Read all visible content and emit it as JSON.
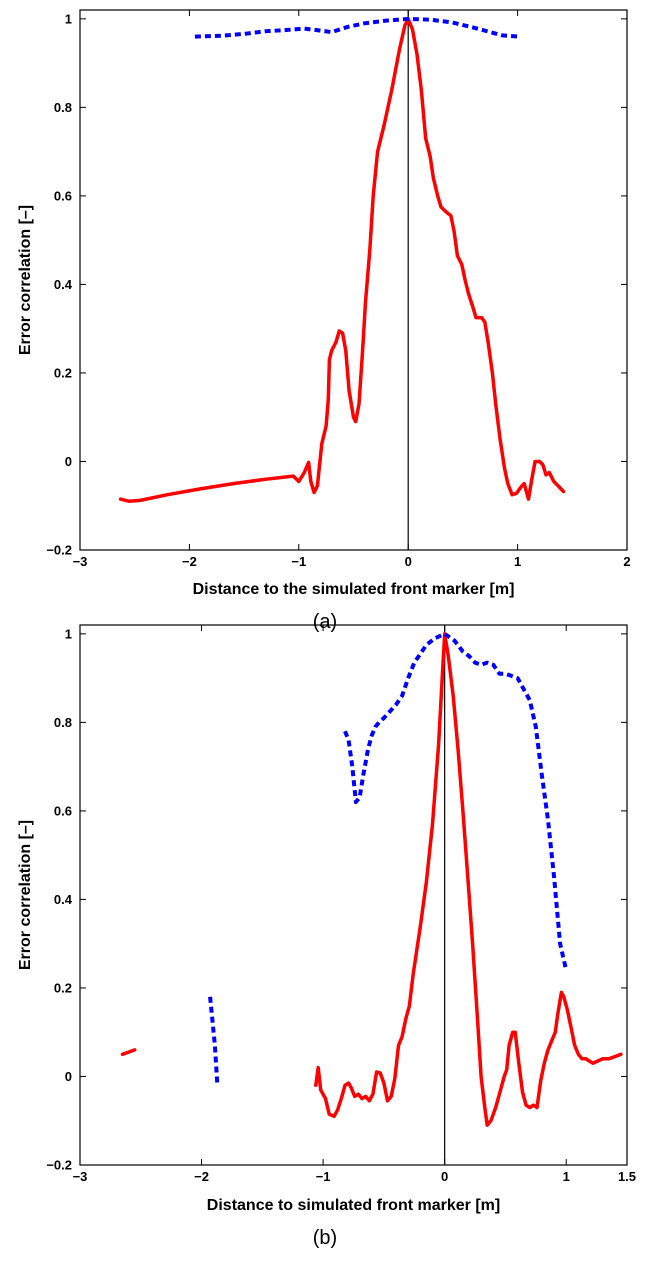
{
  "chart_data": [
    {
      "type": "line",
      "panel_label": "(a)",
      "xlabel": "Distance to the simulated front marker [m]",
      "ylabel": "Error correlation [–]",
      "xlim": [
        -3,
        2
      ],
      "ylim": [
        -0.2,
        1.02
      ],
      "xticks": [
        -3,
        -2,
        -1,
        0,
        1,
        2
      ],
      "xtick_labels": [
        "−3",
        "−2",
        "−1",
        "0",
        "1",
        "2"
      ],
      "yticks": [
        -0.2,
        0,
        0.2,
        0.4,
        0.6,
        0.8,
        1
      ],
      "ytick_labels": [
        "−0.2",
        "0",
        "0.2",
        "0.4",
        "0.6",
        "0.8",
        "1"
      ],
      "zero_line_x": 0,
      "grid": false,
      "series": [
        {
          "color": "#ff0000",
          "style": "solid",
          "segments": [
            [
              [
                -2.63,
                -0.085
              ],
              [
                -2.55,
                -0.09
              ],
              [
                -2.45,
                -0.088
              ],
              [
                -2.2,
                -0.075
              ],
              [
                -1.9,
                -0.062
              ],
              [
                -1.6,
                -0.05
              ],
              [
                -1.3,
                -0.04
              ],
              [
                -1.05,
                -0.033
              ],
              [
                -1.0,
                -0.045
              ],
              [
                -0.95,
                -0.025
              ],
              [
                -0.91,
                -0.002
              ],
              [
                -0.89,
                -0.045
              ],
              [
                -0.86,
                -0.07
              ],
              [
                -0.83,
                -0.055
              ],
              [
                -0.79,
                0.04
              ],
              [
                -0.75,
                0.08
              ],
              [
                -0.73,
                0.14
              ],
              [
                -0.72,
                0.23
              ],
              [
                -0.7,
                0.25
              ],
              [
                -0.66,
                0.27
              ],
              [
                -0.63,
                0.295
              ],
              [
                -0.6,
                0.29
              ],
              [
                -0.57,
                0.25
              ],
              [
                -0.54,
                0.16
              ],
              [
                -0.5,
                0.1
              ],
              [
                -0.48,
                0.09
              ],
              [
                -0.45,
                0.13
              ],
              [
                -0.42,
                0.24
              ],
              [
                -0.39,
                0.36
              ],
              [
                -0.35,
                0.48
              ],
              [
                -0.32,
                0.6
              ],
              [
                -0.28,
                0.7
              ],
              [
                -0.22,
                0.76
              ],
              [
                -0.15,
                0.84
              ],
              [
                -0.08,
                0.93
              ],
              [
                -0.03,
                0.985
              ],
              [
                0.0,
                1.0
              ],
              [
                0.04,
                0.975
              ],
              [
                0.08,
                0.92
              ],
              [
                0.12,
                0.84
              ],
              [
                0.16,
                0.73
              ],
              [
                0.2,
                0.69
              ],
              [
                0.23,
                0.64
              ],
              [
                0.27,
                0.6
              ],
              [
                0.3,
                0.575
              ],
              [
                0.35,
                0.563
              ],
              [
                0.39,
                0.555
              ],
              [
                0.42,
                0.52
              ],
              [
                0.45,
                0.465
              ],
              [
                0.49,
                0.445
              ],
              [
                0.52,
                0.41
              ],
              [
                0.55,
                0.38
              ],
              [
                0.59,
                0.35
              ],
              [
                0.62,
                0.325
              ],
              [
                0.67,
                0.325
              ],
              [
                0.7,
                0.315
              ],
              [
                0.73,
                0.27
              ],
              [
                0.77,
                0.2
              ],
              [
                0.8,
                0.13
              ],
              [
                0.84,
                0.05
              ],
              [
                0.88,
                -0.015
              ],
              [
                0.91,
                -0.05
              ],
              [
                0.95,
                -0.075
              ],
              [
                0.99,
                -0.072
              ],
              [
                1.03,
                -0.058
              ],
              [
                1.06,
                -0.05
              ],
              [
                1.1,
                -0.085
              ],
              [
                1.13,
                -0.04
              ],
              [
                1.16,
                0.0
              ],
              [
                1.2,
                0.0
              ],
              [
                1.23,
                -0.007
              ],
              [
                1.26,
                -0.03
              ],
              [
                1.29,
                -0.025
              ],
              [
                1.33,
                -0.045
              ],
              [
                1.37,
                -0.055
              ],
              [
                1.42,
                -0.068
              ]
            ]
          ]
        },
        {
          "color": "#0000ff",
          "style": "dotted",
          "segments": [
            [
              [
                -1.95,
                0.96
              ],
              [
                -1.7,
                0.962
              ],
              [
                -1.5,
                0.966
              ],
              [
                -1.3,
                0.972
              ],
              [
                -1.1,
                0.975
              ],
              [
                -0.95,
                0.978
              ],
              [
                -0.85,
                0.975
              ],
              [
                -0.7,
                0.97
              ],
              [
                -0.55,
                0.982
              ],
              [
                -0.4,
                0.99
              ],
              [
                -0.2,
                0.996
              ],
              [
                0.0,
                1.0
              ],
              [
                0.2,
                0.998
              ],
              [
                0.4,
                0.992
              ],
              [
                0.6,
                0.98
              ],
              [
                0.75,
                0.97
              ],
              [
                0.85,
                0.963
              ],
              [
                1.0,
                0.96
              ]
            ]
          ]
        }
      ]
    },
    {
      "type": "line",
      "panel_label": "(b)",
      "xlabel": "Distance to simulated front marker [m]",
      "ylabel": "Error correlation [–]",
      "xlim": [
        -3,
        1.5
      ],
      "ylim": [
        -0.2,
        1.02
      ],
      "xticks": [
        -3,
        -2,
        -1,
        0,
        1,
        1.5
      ],
      "xtick_labels": [
        "−3",
        "−2",
        "−1",
        "0",
        "1",
        "1.5"
      ],
      "yticks": [
        -0.2,
        0,
        0.2,
        0.4,
        0.6,
        0.8,
        1
      ],
      "ytick_labels": [
        "−0.2",
        "0",
        "0.2",
        "0.4",
        "0.6",
        "0.8",
        "1"
      ],
      "zero_line_x": 0,
      "grid": false,
      "series": [
        {
          "color": "#ff0000",
          "style": "solid",
          "segments": [
            [
              [
                -2.65,
                0.05
              ],
              [
                -2.55,
                0.06
              ]
            ],
            [
              [
                -1.06,
                -0.02
              ],
              [
                -1.04,
                0.02
              ],
              [
                -1.02,
                -0.03
              ],
              [
                -0.98,
                -0.05
              ],
              [
                -0.95,
                -0.085
              ],
              [
                -0.91,
                -0.09
              ],
              [
                -0.88,
                -0.075
              ],
              [
                -0.85,
                -0.05
              ],
              [
                -0.82,
                -0.02
              ],
              [
                -0.79,
                -0.015
              ],
              [
                -0.77,
                -0.025
              ],
              [
                -0.74,
                -0.045
              ],
              [
                -0.71,
                -0.04
              ],
              [
                -0.68,
                -0.05
              ],
              [
                -0.65,
                -0.045
              ],
              [
                -0.62,
                -0.055
              ],
              [
                -0.59,
                -0.04
              ],
              [
                -0.56,
                0.01
              ],
              [
                -0.53,
                0.008
              ],
              [
                -0.5,
                -0.015
              ],
              [
                -0.47,
                -0.055
              ],
              [
                -0.44,
                -0.045
              ],
              [
                -0.41,
                -0.005
              ],
              [
                -0.38,
                0.07
              ],
              [
                -0.35,
                0.09
              ],
              [
                -0.32,
                0.13
              ],
              [
                -0.29,
                0.16
              ],
              [
                -0.26,
                0.23
              ],
              [
                -0.2,
                0.34
              ],
              [
                -0.15,
                0.44
              ],
              [
                -0.1,
                0.57
              ],
              [
                -0.05,
                0.75
              ],
              [
                -0.02,
                0.9
              ],
              [
                0.0,
                1.0
              ],
              [
                0.03,
                0.95
              ],
              [
                0.07,
                0.86
              ],
              [
                0.11,
                0.74
              ],
              [
                0.15,
                0.6
              ],
              [
                0.19,
                0.45
              ],
              [
                0.23,
                0.3
              ],
              [
                0.27,
                0.13
              ],
              [
                0.3,
                0.0
              ],
              [
                0.33,
                -0.07
              ],
              [
                0.35,
                -0.11
              ],
              [
                0.38,
                -0.1
              ],
              [
                0.42,
                -0.07
              ],
              [
                0.46,
                -0.03
              ],
              [
                0.49,
                0.0
              ],
              [
                0.51,
                0.015
              ],
              [
                0.53,
                0.07
              ],
              [
                0.56,
                0.1
              ],
              [
                0.58,
                0.1
              ],
              [
                0.61,
                0.03
              ],
              [
                0.64,
                -0.035
              ],
              [
                0.67,
                -0.065
              ],
              [
                0.7,
                -0.07
              ],
              [
                0.73,
                -0.065
              ],
              [
                0.76,
                -0.07
              ],
              [
                0.79,
                -0.01
              ],
              [
                0.82,
                0.03
              ],
              [
                0.85,
                0.06
              ],
              [
                0.88,
                0.08
              ],
              [
                0.91,
                0.1
              ],
              [
                0.93,
                0.14
              ],
              [
                0.96,
                0.19
              ],
              [
                0.98,
                0.18
              ],
              [
                1.01,
                0.15
              ],
              [
                1.04,
                0.11
              ],
              [
                1.07,
                0.07
              ],
              [
                1.1,
                0.05
              ],
              [
                1.13,
                0.04
              ],
              [
                1.16,
                0.04
              ],
              [
                1.19,
                0.035
              ],
              [
                1.22,
                0.03
              ],
              [
                1.26,
                0.035
              ],
              [
                1.3,
                0.04
              ],
              [
                1.35,
                0.04
              ],
              [
                1.4,
                0.045
              ],
              [
                1.45,
                0.05
              ]
            ]
          ]
        },
        {
          "color": "#0000ff",
          "style": "dotted",
          "segments": [
            [
              [
                -1.93,
                0.18
              ],
              [
                -1.89,
                0.07
              ],
              [
                -1.87,
                -0.02
              ]
            ],
            [
              [
                -0.82,
                0.78
              ],
              [
                -0.79,
                0.76
              ],
              [
                -0.76,
                0.7
              ],
              [
                -0.73,
                0.62
              ],
              [
                -0.7,
                0.63
              ],
              [
                -0.67,
                0.68
              ],
              [
                -0.63,
                0.74
              ],
              [
                -0.6,
                0.77
              ],
              [
                -0.57,
                0.79
              ],
              [
                -0.54,
                0.8
              ],
              [
                -0.5,
                0.81
              ],
              [
                -0.45,
                0.825
              ],
              [
                -0.4,
                0.84
              ],
              [
                -0.35,
                0.86
              ],
              [
                -0.3,
                0.9
              ],
              [
                -0.25,
                0.935
              ],
              [
                -0.2,
                0.955
              ],
              [
                -0.15,
                0.975
              ],
              [
                -0.08,
                0.99
              ],
              [
                0.0,
                1.0
              ],
              [
                0.08,
                0.985
              ],
              [
                0.15,
                0.96
              ],
              [
                0.2,
                0.95
              ],
              [
                0.25,
                0.935
              ],
              [
                0.3,
                0.93
              ],
              [
                0.35,
                0.935
              ],
              [
                0.4,
                0.93
              ],
              [
                0.45,
                0.91
              ],
              [
                0.5,
                0.91
              ],
              [
                0.55,
                0.905
              ],
              [
                0.6,
                0.9
              ],
              [
                0.65,
                0.875
              ],
              [
                0.7,
                0.85
              ],
              [
                0.75,
                0.79
              ],
              [
                0.8,
                0.68
              ],
              [
                0.85,
                0.58
              ],
              [
                0.9,
                0.45
              ],
              [
                0.95,
                0.3
              ],
              [
                1.0,
                0.24
              ]
            ]
          ]
        }
      ]
    }
  ]
}
